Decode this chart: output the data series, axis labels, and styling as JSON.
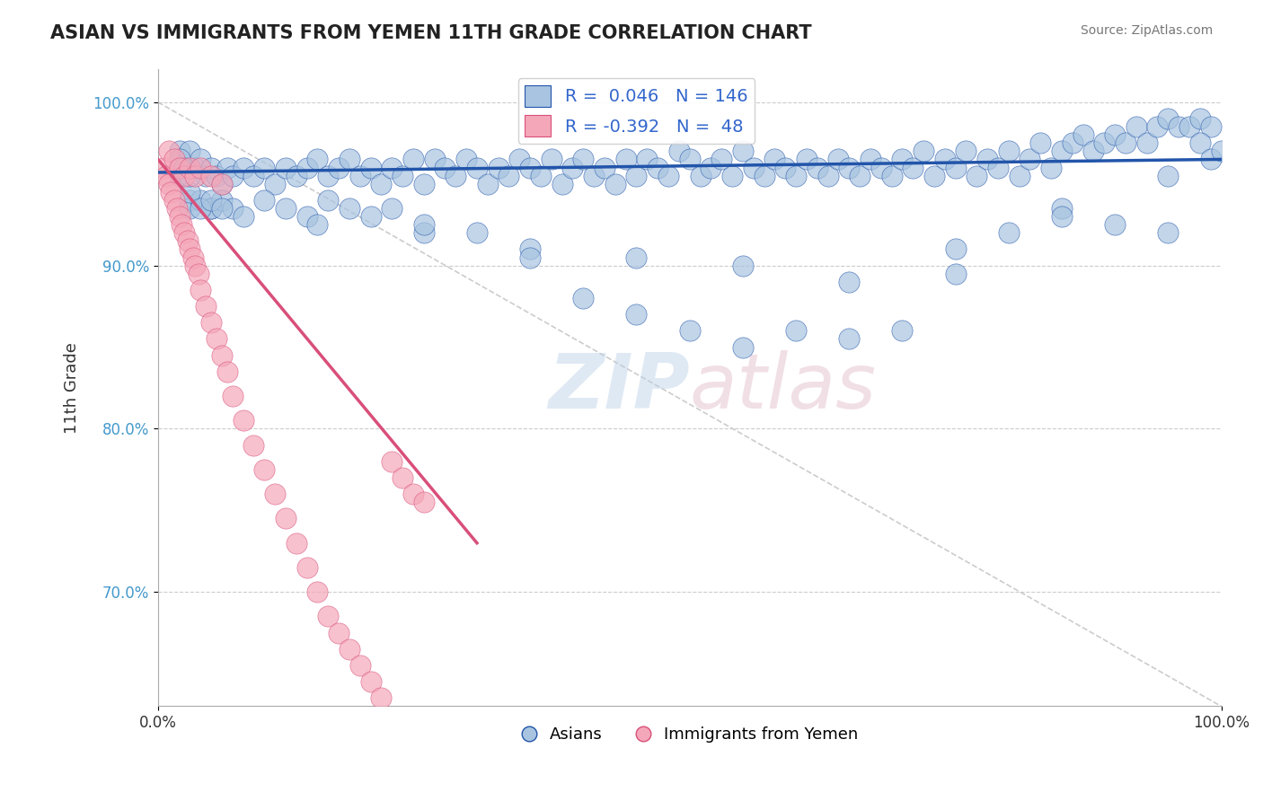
{
  "title": "ASIAN VS IMMIGRANTS FROM YEMEN 11TH GRADE CORRELATION CHART",
  "source_text": "Source: ZipAtlas.com",
  "xlabel": "",
  "ylabel": "11th Grade",
  "watermark": "ZIPatlas",
  "legend_r_blue": "0.046",
  "legend_n_blue": "146",
  "legend_r_pink": "-0.392",
  "legend_n_pink": "48",
  "legend_label_blue": "Asians",
  "legend_label_pink": "Immigrants from Yemen",
  "xlim": [
    0.0,
    1.0
  ],
  "ylim": [
    0.63,
    1.02
  ],
  "yticks": [
    0.7,
    0.8,
    0.9,
    1.0
  ],
  "ytick_labels": [
    "70.0%",
    "80.0%",
    "90.0%",
    "100.0%"
  ],
  "xticks": [
    0.0,
    1.0
  ],
  "xtick_labels": [
    "0.0%",
    "100.0%"
  ],
  "blue_color": "#a8c4e0",
  "blue_line_color": "#2255aa",
  "pink_color": "#f4a7b9",
  "pink_line_color": "#d94f7a",
  "grid_color": "#cccccc",
  "background_color": "#ffffff",
  "title_color": "#222222",
  "watermark_color_zip": "#b0c4de",
  "watermark_color_atlas": "#d0a0b0",
  "blue_scatter_x": [
    0.02,
    0.025,
    0.03,
    0.035,
    0.04,
    0.045,
    0.05,
    0.055,
    0.06,
    0.065,
    0.07,
    0.08,
    0.09,
    0.1,
    0.11,
    0.12,
    0.13,
    0.14,
    0.15,
    0.16,
    0.17,
    0.18,
    0.19,
    0.2,
    0.21,
    0.22,
    0.23,
    0.24,
    0.25,
    0.26,
    0.27,
    0.28,
    0.29,
    0.3,
    0.31,
    0.32,
    0.33,
    0.34,
    0.35,
    0.36,
    0.37,
    0.38,
    0.39,
    0.4,
    0.41,
    0.42,
    0.43,
    0.44,
    0.45,
    0.46,
    0.47,
    0.48,
    0.49,
    0.5,
    0.51,
    0.52,
    0.53,
    0.54,
    0.55,
    0.56,
    0.57,
    0.58,
    0.59,
    0.6,
    0.61,
    0.62,
    0.63,
    0.64,
    0.65,
    0.66,
    0.67,
    0.68,
    0.69,
    0.7,
    0.71,
    0.72,
    0.73,
    0.74,
    0.75,
    0.76,
    0.77,
    0.78,
    0.79,
    0.8,
    0.81,
    0.82,
    0.83,
    0.84,
    0.85,
    0.86,
    0.87,
    0.88,
    0.89,
    0.9,
    0.91,
    0.92,
    0.93,
    0.94,
    0.95,
    0.96,
    0.97,
    0.98,
    0.99,
    0.03,
    0.03,
    0.04,
    0.05,
    0.05,
    0.06,
    0.07,
    0.08,
    0.1,
    0.12,
    0.14,
    0.16,
    0.18,
    0.2,
    0.22,
    0.25,
    0.3,
    0.35,
    0.4,
    0.45,
    0.5,
    0.55,
    0.6,
    0.65,
    0.7,
    0.75,
    0.8,
    0.85,
    0.9,
    0.95,
    0.98,
    0.02,
    0.03,
    0.04,
    0.05,
    0.06,
    0.15,
    0.25,
    0.35,
    0.45,
    0.55,
    0.65,
    0.75,
    0.85,
    0.95,
    0.99,
    1.0,
    0.02,
    0.025,
    0.03
  ],
  "blue_scatter_y": [
    0.97,
    0.96,
    0.97,
    0.96,
    0.965,
    0.955,
    0.96,
    0.955,
    0.95,
    0.96,
    0.955,
    0.96,
    0.955,
    0.96,
    0.95,
    0.96,
    0.955,
    0.96,
    0.965,
    0.955,
    0.96,
    0.965,
    0.955,
    0.96,
    0.95,
    0.96,
    0.955,
    0.965,
    0.95,
    0.965,
    0.96,
    0.955,
    0.965,
    0.96,
    0.95,
    0.96,
    0.955,
    0.965,
    0.96,
    0.955,
    0.965,
    0.95,
    0.96,
    0.965,
    0.955,
    0.96,
    0.95,
    0.965,
    0.955,
    0.965,
    0.96,
    0.955,
    0.97,
    0.965,
    0.955,
    0.96,
    0.965,
    0.955,
    0.97,
    0.96,
    0.955,
    0.965,
    0.96,
    0.955,
    0.965,
    0.96,
    0.955,
    0.965,
    0.96,
    0.955,
    0.965,
    0.96,
    0.955,
    0.965,
    0.96,
    0.97,
    0.955,
    0.965,
    0.96,
    0.97,
    0.955,
    0.965,
    0.96,
    0.97,
    0.955,
    0.965,
    0.975,
    0.96,
    0.97,
    0.975,
    0.98,
    0.97,
    0.975,
    0.98,
    0.975,
    0.985,
    0.975,
    0.985,
    0.99,
    0.985,
    0.985,
    0.99,
    0.985,
    0.94,
    0.935,
    0.94,
    0.935,
    0.935,
    0.94,
    0.935,
    0.93,
    0.94,
    0.935,
    0.93,
    0.94,
    0.935,
    0.93,
    0.935,
    0.92,
    0.92,
    0.91,
    0.88,
    0.87,
    0.86,
    0.85,
    0.86,
    0.855,
    0.86,
    0.91,
    0.92,
    0.935,
    0.925,
    0.92,
    0.975,
    0.955,
    0.945,
    0.935,
    0.94,
    0.935,
    0.925,
    0.925,
    0.905,
    0.905,
    0.9,
    0.89,
    0.895,
    0.93,
    0.955,
    0.965,
    0.97,
    0.965,
    0.96,
    0.955
  ],
  "pink_scatter_x": [
    0.005,
    0.008,
    0.01,
    0.012,
    0.015,
    0.018,
    0.02,
    0.022,
    0.025,
    0.028,
    0.03,
    0.033,
    0.035,
    0.038,
    0.04,
    0.045,
    0.05,
    0.055,
    0.06,
    0.065,
    0.07,
    0.08,
    0.09,
    0.1,
    0.11,
    0.12,
    0.13,
    0.14,
    0.15,
    0.16,
    0.17,
    0.18,
    0.19,
    0.2,
    0.21,
    0.22,
    0.23,
    0.24,
    0.25,
    0.01,
    0.015,
    0.02,
    0.025,
    0.03,
    0.035,
    0.04,
    0.05,
    0.06
  ],
  "pink_scatter_y": [
    0.96,
    0.955,
    0.95,
    0.945,
    0.94,
    0.935,
    0.93,
    0.925,
    0.92,
    0.915,
    0.91,
    0.905,
    0.9,
    0.895,
    0.885,
    0.875,
    0.865,
    0.855,
    0.845,
    0.835,
    0.82,
    0.805,
    0.79,
    0.775,
    0.76,
    0.745,
    0.73,
    0.715,
    0.7,
    0.685,
    0.675,
    0.665,
    0.655,
    0.645,
    0.635,
    0.78,
    0.77,
    0.76,
    0.755,
    0.97,
    0.965,
    0.96,
    0.955,
    0.96,
    0.955,
    0.96,
    0.955,
    0.95
  ],
  "blue_trend_x": [
    0.0,
    1.0
  ],
  "blue_trend_y": [
    0.957,
    0.965
  ],
  "pink_trend_x": [
    0.0,
    0.3
  ],
  "pink_trend_y": [
    0.965,
    0.73
  ],
  "diag_line_x": [
    0.0,
    1.0
  ],
  "diag_line_y": [
    1.0,
    0.63
  ]
}
